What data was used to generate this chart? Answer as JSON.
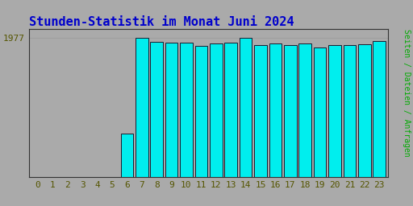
{
  "title": "Stunden-Statistik im Monat Juni 2024",
  "ylabel": "Seiten / Dateien / Anfragen",
  "xlabel_ticks": [
    0,
    1,
    2,
    3,
    4,
    5,
    6,
    7,
    8,
    9,
    10,
    11,
    12,
    13,
    14,
    15,
    16,
    17,
    18,
    19,
    20,
    21,
    22,
    23
  ],
  "values": [
    0,
    0,
    0,
    0,
    0,
    0,
    620,
    1977,
    1920,
    1910,
    1910,
    1860,
    1890,
    1910,
    1970,
    1870,
    1890,
    1870,
    1890,
    1840,
    1870,
    1870,
    1880,
    1930
  ],
  "bar_color": "#00EEEE",
  "bar_edge_color": "#1a1a2e",
  "background_color": "#aaaaaa",
  "plot_bg_color": "#aaaaaa",
  "title_color": "#0000cc",
  "ylabel_color": "#00aa00",
  "tick_label_color": "#555500",
  "border_color": "#333333",
  "ylim_max": 2100,
  "title_fontsize": 11,
  "axis_label_fontsize": 8
}
